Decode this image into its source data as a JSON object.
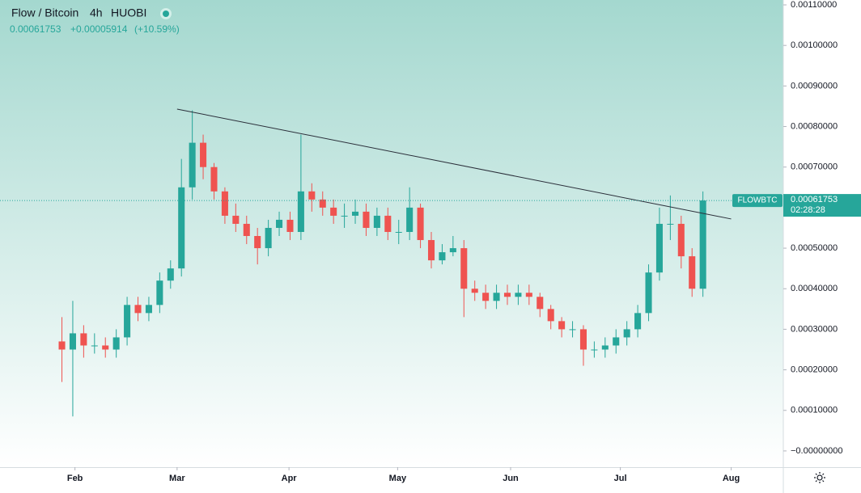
{
  "header": {
    "title": "Flow / Bitcoin",
    "interval": "4h",
    "exchange": "HUOBI",
    "last": "0.00061753",
    "change": "+0.00005914",
    "change_pct": "(+10.59%)"
  },
  "chart_data": {
    "type": "candlestick",
    "symbol": "FLOWBTC",
    "last_price_label": "0.00061753",
    "countdown": "02:28:28",
    "up_color": "#26a69a",
    "down_color": "#ef5350",
    "open": [
      0.00027,
      0.00025,
      0.00029,
      0.00026,
      0.00026,
      0.00025,
      0.00028,
      0.00036,
      0.00034,
      0.00036,
      0.00042,
      0.00045,
      0.00065,
      0.00076,
      0.0007,
      0.00064,
      0.00058,
      0.00056,
      0.00053,
      0.0005,
      0.00055,
      0.00057,
      0.00054,
      0.00064,
      0.00062,
      0.0006,
      0.00058,
      0.00058,
      0.00059,
      0.00055,
      0.00058,
      0.00054,
      0.00054,
      0.0006,
      0.00052,
      0.00047,
      0.00049,
      0.0005,
      0.0004,
      0.00039,
      0.00037,
      0.00039,
      0.00038,
      0.00039,
      0.00038,
      0.00035,
      0.00032,
      0.0003,
      0.0003,
      0.00025,
      0.00025,
      0.00026,
      0.00028,
      0.0003,
      0.00034,
      0.00044,
      0.00056,
      0.00056,
      0.00048,
      0.0004
    ],
    "high": [
      0.00033,
      0.00037,
      0.00031,
      0.00029,
      0.00028,
      0.0003,
      0.00038,
      0.00038,
      0.00038,
      0.00044,
      0.00047,
      0.00072,
      0.00084,
      0.00078,
      0.00071,
      0.00065,
      0.00061,
      0.00058,
      0.00055,
      0.00057,
      0.00059,
      0.00059,
      0.00078,
      0.00066,
      0.00064,
      0.00062,
      0.00061,
      0.00062,
      0.00061,
      0.0006,
      0.0006,
      0.00057,
      0.00065,
      0.00061,
      0.00054,
      0.00051,
      0.00053,
      0.00052,
      0.00042,
      0.00041,
      0.00041,
      0.00041,
      0.00041,
      0.00041,
      0.00039,
      0.00036,
      0.00033,
      0.00032,
      0.00031,
      0.00027,
      0.00028,
      0.0003,
      0.00032,
      0.00036,
      0.00046,
      0.0006,
      0.00063,
      0.00058,
      0.0005,
      0.00064
    ],
    "low": [
      0.00017,
      8.5e-05,
      0.00023,
      0.00024,
      0.00023,
      0.00023,
      0.00026,
      0.00032,
      0.00032,
      0.00034,
      0.0004,
      0.00043,
      0.00062,
      0.00067,
      0.00062,
      0.00056,
      0.00054,
      0.00051,
      0.00046,
      0.00048,
      0.00053,
      0.00052,
      0.00052,
      0.00059,
      0.00058,
      0.00056,
      0.00055,
      0.00056,
      0.00053,
      0.00053,
      0.00052,
      0.00051,
      0.00052,
      0.0005,
      0.00045,
      0.00046,
      0.00048,
      0.00033,
      0.00037,
      0.00035,
      0.00035,
      0.00036,
      0.00036,
      0.00036,
      0.00033,
      0.0003,
      0.00028,
      0.00028,
      0.00021,
      0.00023,
      0.00023,
      0.00024,
      0.00026,
      0.00028,
      0.00032,
      0.00042,
      0.00052,
      0.00045,
      0.00038,
      0.00038
    ],
    "close": [
      0.00025,
      0.00029,
      0.00026,
      0.00026,
      0.00025,
      0.00028,
      0.00036,
      0.00034,
      0.00036,
      0.00042,
      0.00045,
      0.00065,
      0.00076,
      0.0007,
      0.00064,
      0.00058,
      0.00056,
      0.00053,
      0.0005,
      0.00055,
      0.00057,
      0.00054,
      0.00064,
      0.00062,
      0.0006,
      0.00058,
      0.00058,
      0.00059,
      0.00055,
      0.00058,
      0.00054,
      0.00054,
      0.0006,
      0.00052,
      0.00047,
      0.00049,
      0.0005,
      0.0004,
      0.00039,
      0.00037,
      0.00039,
      0.00038,
      0.00039,
      0.00038,
      0.00035,
      0.00032,
      0.0003,
      0.0003,
      0.00025,
      0.00025,
      0.00026,
      0.00028,
      0.0003,
      0.00034,
      0.00044,
      0.00056,
      0.00056,
      0.00048,
      0.0004,
      0.00061753
    ],
    "xlim": [
      -5.7,
      66.4
    ],
    "xticks": [
      {
        "value": 1.2,
        "label": "Feb"
      },
      {
        "value": 10.6,
        "label": "Mar"
      },
      {
        "value": 20.9,
        "label": "Apr"
      },
      {
        "value": 30.9,
        "label": "May"
      },
      {
        "value": 41.3,
        "label": "Jun"
      },
      {
        "value": 51.4,
        "label": "Jul"
      },
      {
        "value": 61.6,
        "label": "Aug"
      }
    ],
    "ylim": [
      -4e-05,
      0.001112
    ],
    "yticks": [
      {
        "value": 0.0011,
        "label": "0.00110000"
      },
      {
        "value": 0.001,
        "label": "0.00100000"
      },
      {
        "value": 0.0009,
        "label": "0.00090000"
      },
      {
        "value": 0.0008,
        "label": "0.00080000"
      },
      {
        "value": 0.0007,
        "label": "0.00070000"
      },
      {
        "value": 0.0006,
        "label": "0.00060000"
      },
      {
        "value": 0.0005,
        "label": "0.00050000"
      },
      {
        "value": 0.0004,
        "label": "0.00040000"
      },
      {
        "value": 0.0003,
        "label": "0.00030000"
      },
      {
        "value": 0.0002,
        "label": "0.00020000"
      },
      {
        "value": 0.0001,
        "label": "0.00010000"
      },
      {
        "value": 0,
        "label": "−0.00000000"
      }
    ],
    "trendline": {
      "x": [
        10.6,
        61.6
      ],
      "y": [
        0.000843,
        0.000572
      ]
    }
  }
}
